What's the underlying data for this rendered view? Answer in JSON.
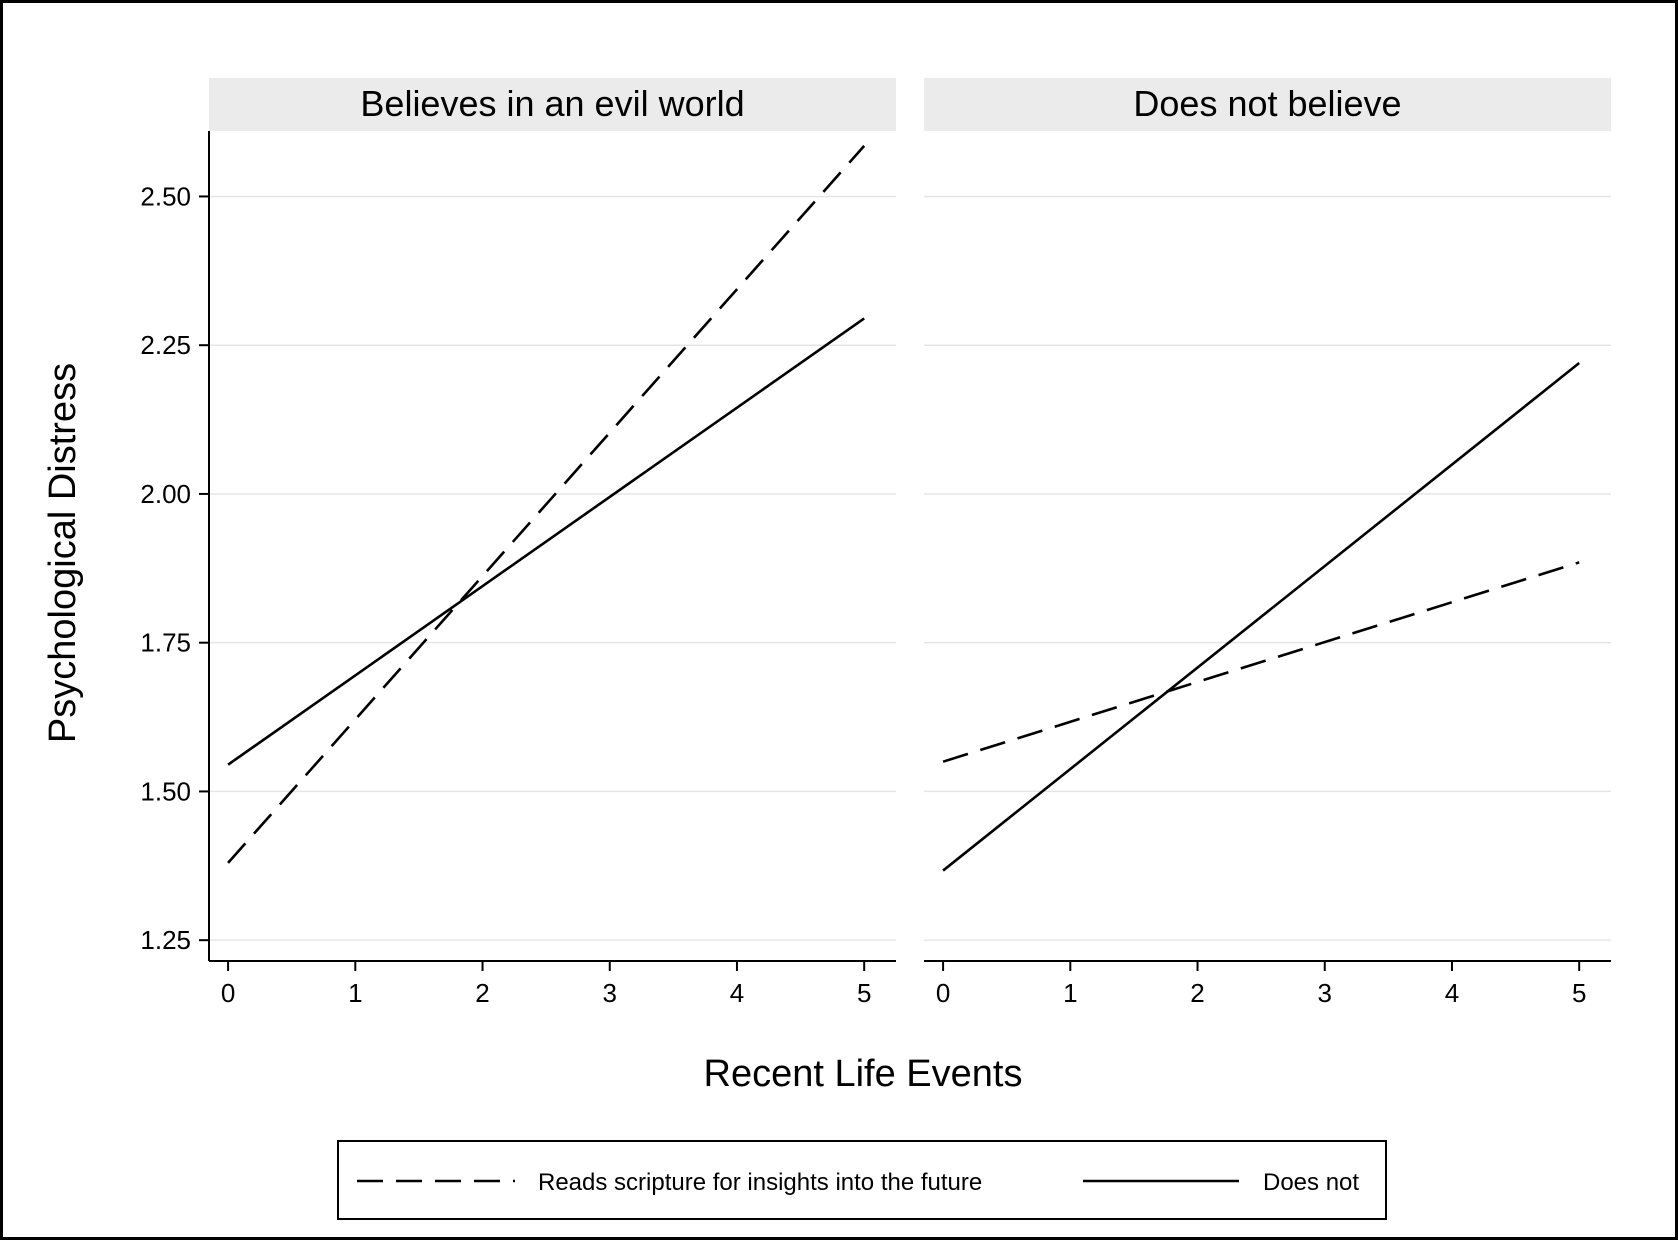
{
  "chart_data": {
    "type": "line",
    "ylabel": "Psychological Distress",
    "xlabel": "Recent Life Events",
    "x": [
      0,
      5
    ],
    "xlim": [
      -0.15,
      5.25
    ],
    "ylim": [
      1.215,
      2.61
    ],
    "xticks": [
      0,
      1,
      2,
      3,
      4,
      5
    ],
    "yticks": [
      1.25,
      1.5,
      1.75,
      2.0,
      2.25,
      2.5
    ],
    "ytick_labels": [
      "1.25",
      "1.50",
      "1.75",
      "2.00",
      "2.25",
      "2.50"
    ],
    "grid": true,
    "legend_position": "bottom",
    "series_styles": [
      {
        "key": "reads",
        "dash": "dashed",
        "color": "#000000"
      },
      {
        "key": "does_not",
        "dash": "solid",
        "color": "#000000"
      }
    ],
    "legend": [
      {
        "key": "reads",
        "label": "Reads scripture for insights into the future"
      },
      {
        "key": "does_not",
        "label": "Does not"
      }
    ],
    "panels": [
      {
        "title": "Believes in an evil world",
        "series": [
          {
            "key": "reads",
            "name": "Reads scripture for insights into the future",
            "values": [
              1.38,
              2.585
            ]
          },
          {
            "key": "does_not",
            "name": "Does not",
            "values": [
              1.545,
              2.295
            ]
          }
        ]
      },
      {
        "title": "Does not believe",
        "series": [
          {
            "key": "reads",
            "name": "Reads scripture for insights into the future",
            "values": [
              1.55,
              1.885
            ]
          },
          {
            "key": "does_not",
            "name": "Does not",
            "values": [
              1.367,
              2.22
            ]
          }
        ]
      }
    ]
  }
}
